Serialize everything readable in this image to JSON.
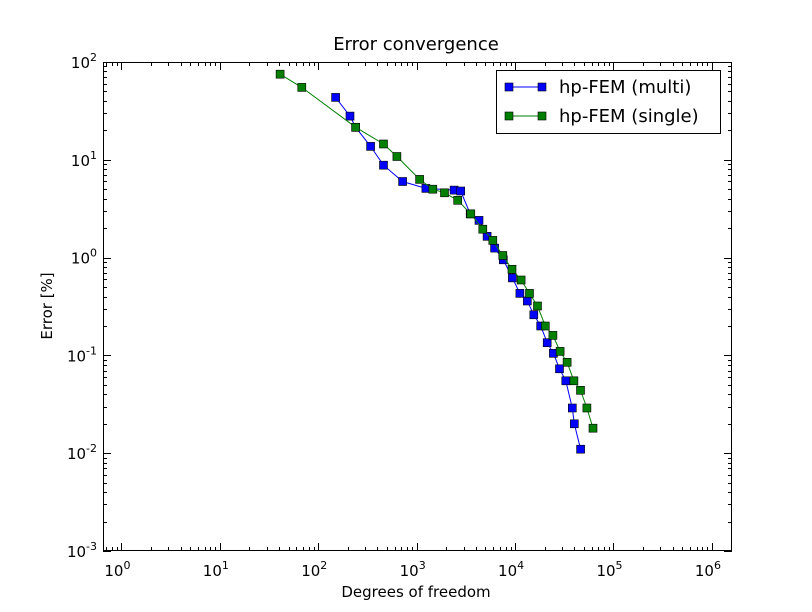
{
  "chart_data": {
    "type": "line",
    "title": "Error convergence",
    "xlabel": "Degrees of freedom",
    "ylabel": "Error [%]",
    "xscale": "log",
    "yscale": "log",
    "xlim": [
      0.65,
      1600000
    ],
    "ylim": [
      0.001,
      100
    ],
    "xticks": [
      {
        "value": 1,
        "base": "10",
        "exp": "0"
      },
      {
        "value": 10,
        "base": "10",
        "exp": "1"
      },
      {
        "value": 100,
        "base": "10",
        "exp": "2"
      },
      {
        "value": 1000,
        "base": "10",
        "exp": "3"
      },
      {
        "value": 10000,
        "base": "10",
        "exp": "4"
      },
      {
        "value": 100000,
        "base": "10",
        "exp": "5"
      },
      {
        "value": 1000000,
        "base": "10",
        "exp": "6"
      }
    ],
    "yticks": [
      {
        "value": 0.001,
        "base": "10",
        "exp": "-3"
      },
      {
        "value": 0.01,
        "base": "10",
        "exp": "-2"
      },
      {
        "value": 0.1,
        "base": "10",
        "exp": "-1"
      },
      {
        "value": 1,
        "base": "10",
        "exp": "0"
      },
      {
        "value": 10,
        "base": "10",
        "exp": "1"
      },
      {
        "value": 100,
        "base": "10",
        "exp": "2"
      }
    ],
    "grid": false,
    "legend_position": "top-right",
    "series": [
      {
        "name": "hp-FEM (multi)",
        "color": "#0000ff",
        "marker": "square",
        "x": [
          150,
          210,
          240,
          340,
          460,
          720,
          1240,
          2400,
          2800,
          3500,
          4300,
          5200,
          6200,
          7600,
          9400,
          11200,
          13300,
          15500,
          18200,
          21200,
          24500,
          28300,
          32800,
          38100,
          40000,
          46300
        ],
        "y": [
          43.5,
          28,
          21.5,
          13.7,
          8.8,
          6.0,
          5.1,
          4.9,
          4.8,
          2.8,
          2.4,
          1.65,
          1.25,
          0.95,
          0.62,
          0.43,
          0.36,
          0.26,
          0.2,
          0.135,
          0.105,
          0.073,
          0.055,
          0.029,
          0.02,
          0.011
        ]
      },
      {
        "name": "hp-FEM (single)",
        "color": "#007f00",
        "marker": "square",
        "x": [
          41,
          68,
          240,
          460,
          630,
          1070,
          1460,
          1920,
          2610,
          3550,
          4700,
          5940,
          7500,
          9300,
          11500,
          14000,
          16900,
          20300,
          24200,
          28700,
          33800,
          39600,
          46200,
          53700,
          61900
        ],
        "y": [
          75,
          55,
          21.5,
          14.5,
          10.8,
          6.3,
          5.0,
          4.6,
          3.85,
          2.8,
          1.95,
          1.5,
          1.05,
          0.76,
          0.59,
          0.43,
          0.32,
          0.2,
          0.16,
          0.11,
          0.085,
          0.055,
          0.044,
          0.029,
          0.018
        ]
      }
    ]
  }
}
